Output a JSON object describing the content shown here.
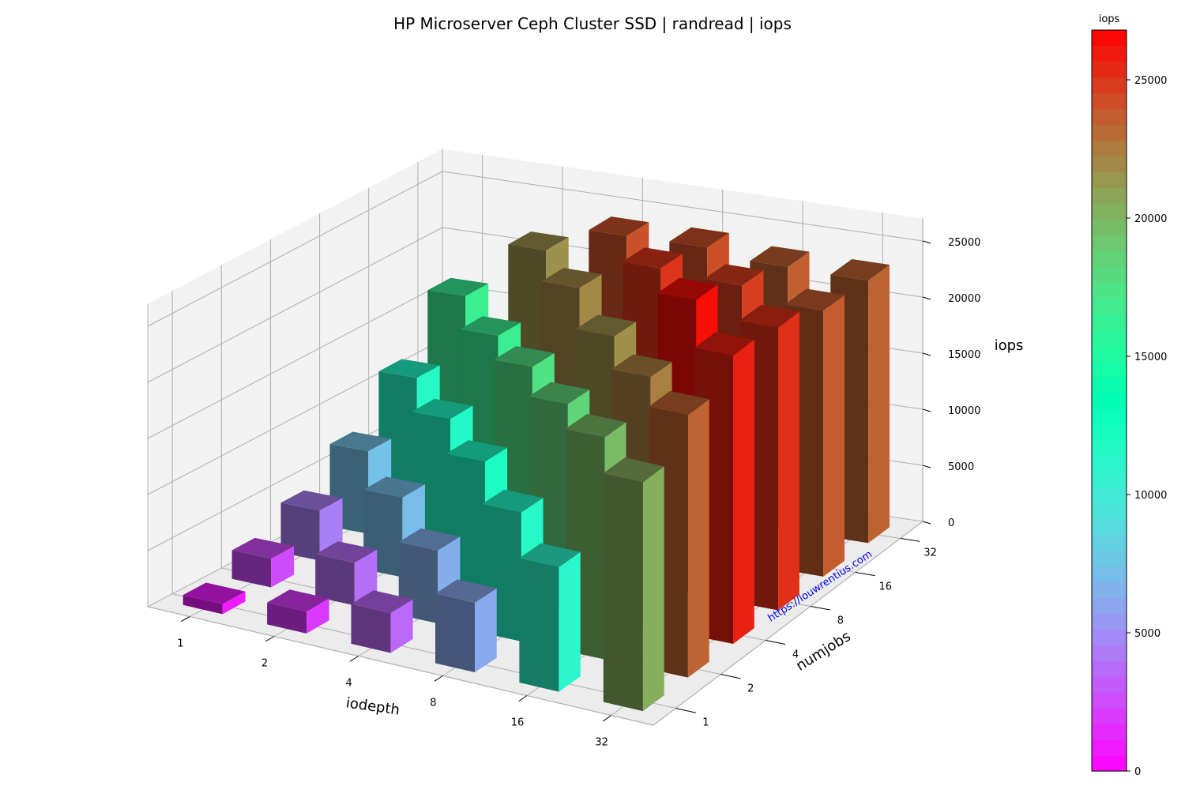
{
  "chart_data": {
    "type": "bar3d",
    "title": "HP Microserver Ceph Cluster SSD | randread | iops",
    "xlabel": "iodepth",
    "ylabel": "numjobs",
    "zlabel": "iops",
    "x_categories": [
      "1",
      "2",
      "4",
      "8",
      "16",
      "32"
    ],
    "y_categories": [
      "1",
      "2",
      "4",
      "8",
      "16",
      "32"
    ],
    "zlim": [
      0,
      27000
    ],
    "z_ticks": [
      "0",
      "5000",
      "10000",
      "15000",
      "20000",
      "25000"
    ],
    "grid": true,
    "colormap": "rainbow",
    "colorbar": {
      "label": "iops",
      "min": 0,
      "max": 26800,
      "ticks": [
        "0",
        "5000",
        "10000",
        "15000",
        "20000",
        "25000"
      ],
      "steps": 47
    },
    "values": [
      [
        900,
        1950,
        3550,
        6200,
        11100,
        20400
      ],
      [
        2550,
        3800,
        6500,
        11500,
        19800,
        23400
      ],
      [
        4450,
        7100,
        11800,
        18400,
        22300,
        25700
      ],
      [
        7350,
        11600,
        17600,
        21700,
        26300,
        25200
      ],
      [
        11500,
        16500,
        22000,
        25000,
        24700,
        23700
      ],
      [
        16400,
        21600,
        24000,
        24100,
        23500,
        23400
      ]
    ],
    "watermark": "https://louwrentius.com"
  }
}
